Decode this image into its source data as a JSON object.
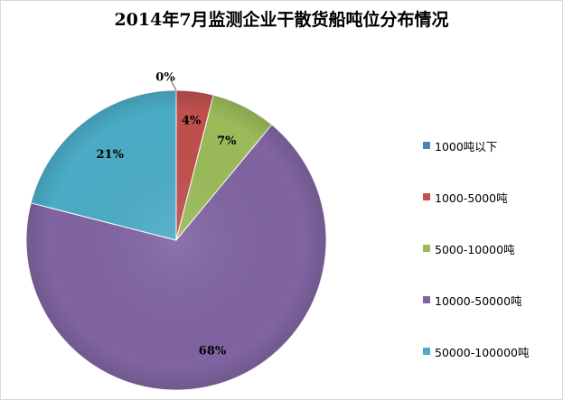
{
  "chart_data": {
    "type": "pie",
    "title": "2014年7月监测企业干散货船吨位分布情况",
    "categories": [
      "1000吨以下",
      "1000-5000吨",
      "5000-10000吨",
      "10000-50000吨",
      "50000-100000吨"
    ],
    "values": [
      0,
      4,
      7,
      68,
      21
    ],
    "value_labels": [
      "0%",
      "4%",
      "7%",
      "68%",
      "21%"
    ],
    "colors": [
      "#4F81BD",
      "#C0504D",
      "#9BBB59",
      "#8064A2",
      "#4BACC6"
    ],
    "legend_position": "right",
    "start_angle": "12 o'clock",
    "direction": "clockwise"
  }
}
